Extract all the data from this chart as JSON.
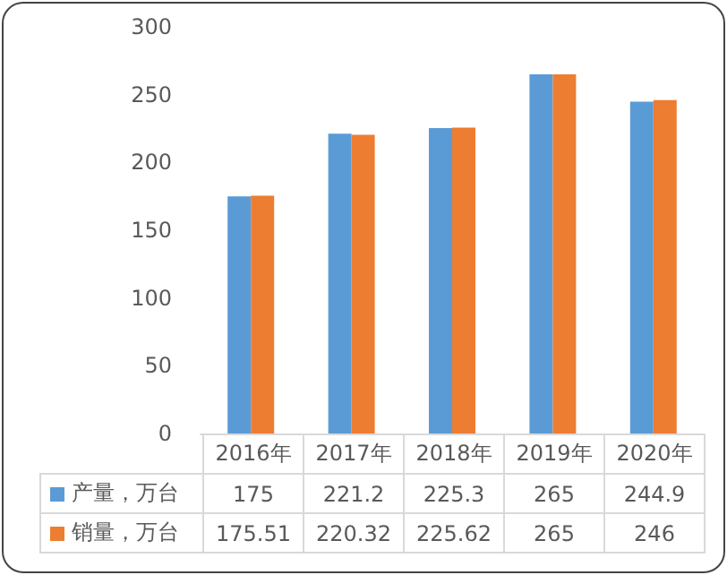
{
  "chart_data": {
    "type": "bar",
    "categories": [
      "2016年",
      "2017年",
      "2018年",
      "2019年",
      "2020年"
    ],
    "series": [
      {
        "name": "产量，万台",
        "color": "#5b9bd5",
        "values": [
          175,
          221.2,
          225.3,
          265,
          244.9
        ]
      },
      {
        "name": "销量，万台",
        "color": "#ed7d31",
        "values": [
          175.51,
          220.32,
          225.62,
          265,
          246
        ]
      }
    ],
    "ylim": [
      0,
      300
    ],
    "yticks": [
      0,
      50,
      100,
      150,
      200,
      250,
      300
    ],
    "grid": false,
    "legend": "bottom",
    "data_labels": true
  }
}
